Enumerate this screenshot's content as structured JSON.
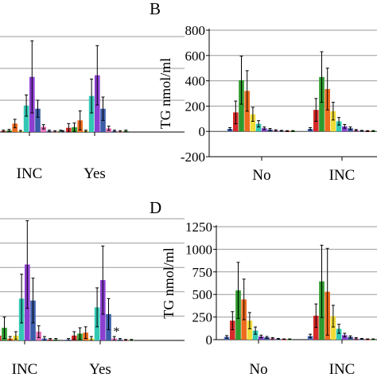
{
  "colors": {
    "blue": "#4a6fc7",
    "red": "#d62a2a",
    "green": "#2e9a2e",
    "orange": "#ee6a1f",
    "yellow": "#f2dc38",
    "teal": "#33c8b4",
    "purple": "#8b3fd0",
    "navy": "#3b5ca8",
    "pink": "#e86fb8",
    "grid": "#9a9a9a"
  },
  "chart_data": [
    {
      "panel": "A",
      "type": "bar",
      "letter": "",
      "ylabel": "",
      "ylim": [
        0,
        900
      ],
      "yticks": [],
      "grid_values": [
        300,
        600,
        900
      ],
      "categories": [
        "INC",
        "Yes"
      ],
      "grid": true,
      "series_colors": [
        "blue",
        "red",
        "green",
        "orange",
        "yellow",
        "teal",
        "purple",
        "navy",
        "pink",
        "blue",
        "red",
        "green"
      ],
      "groups": [
        {
          "values": [
            5,
            10,
            15,
            80,
            8,
            250,
            520,
            220,
            50,
            10,
            5,
            10
          ],
          "errors": [
            8,
            8,
            10,
            40,
            8,
            100,
            340,
            80,
            20,
            8,
            8,
            8
          ],
          "star": false
        },
        {
          "values": [
            5,
            40,
            45,
            110,
            10,
            340,
            535,
            220,
            35,
            10,
            5,
            10
          ],
          "errors": [
            8,
            40,
            40,
            90,
            8,
            160,
            280,
            110,
            20,
            8,
            8,
            8
          ],
          "star": false
        }
      ]
    },
    {
      "panel": "B",
      "type": "bar",
      "letter": "B",
      "ylabel": "TG nmol/ml",
      "ylim": [
        -200,
        800
      ],
      "yticks": [
        "-200",
        "0",
        "200",
        "400",
        "600",
        "800"
      ],
      "grid_values": [
        -200,
        0,
        200,
        400,
        600,
        800
      ],
      "categories": [
        "No",
        "INC"
      ],
      "grid": true,
      "series_colors": [
        "blue",
        "red",
        "green",
        "orange",
        "yellow",
        "teal",
        "purple",
        "navy",
        "pink",
        "blue",
        "red",
        "green"
      ],
      "groups": [
        {
          "values": [
            20,
            150,
            405,
            320,
            135,
            60,
            25,
            15,
            8,
            5,
            3,
            3
          ],
          "errors": [
            10,
            90,
            190,
            160,
            55,
            25,
            10,
            8,
            5,
            3,
            3,
            3
          ],
          "star": false
        },
        {
          "values": [
            20,
            170,
            430,
            335,
            160,
            80,
            40,
            25,
            10,
            5,
            3,
            3
          ],
          "errors": [
            10,
            90,
            200,
            165,
            70,
            30,
            15,
            10,
            5,
            3,
            3,
            3
          ],
          "star": false
        }
      ]
    },
    {
      "panel": "C",
      "type": "bar",
      "letter": "",
      "ylabel": "",
      "ylim": [
        0,
        1250
      ],
      "yticks": [],
      "grid_values": [
        250,
        500,
        750,
        1000,
        1250
      ],
      "categories": [
        "INC",
        "Yes"
      ],
      "grid": true,
      "series_colors": [
        "blue",
        "red",
        "green",
        "orange",
        "yellow",
        "teal",
        "purple",
        "navy",
        "pink",
        "blue",
        "red",
        "green"
      ],
      "groups": [
        {
          "values": [
            20,
            50,
            130,
            20,
            50,
            430,
            780,
            410,
            90,
            20,
            10,
            10
          ],
          "errors": [
            20,
            50,
            110,
            20,
            40,
            250,
            450,
            230,
            60,
            20,
            10,
            10
          ],
          "star": false
        },
        {
          "values": [
            10,
            50,
            70,
            80,
            20,
            340,
            620,
            270,
            20,
            10,
            5,
            5
          ],
          "errors": [
            10,
            40,
            60,
            60,
            20,
            200,
            350,
            160,
            20,
            10,
            5,
            5
          ],
          "star": true
        }
      ]
    },
    {
      "panel": "D",
      "type": "bar",
      "letter": "D",
      "ylabel": "TG nmol/ml",
      "ylim": [
        0,
        1250
      ],
      "yticks": [
        "0",
        "250",
        "500",
        "750",
        "1000",
        "1250"
      ],
      "grid_values": [
        0,
        250,
        500,
        750,
        1000,
        1250
      ],
      "categories": [
        "No",
        "INC"
      ],
      "grid": true,
      "series_colors": [
        "blue",
        "red",
        "green",
        "orange",
        "yellow",
        "teal",
        "purple",
        "navy",
        "pink",
        "blue",
        "red",
        "green"
      ],
      "groups": [
        {
          "values": [
            30,
            210,
            545,
            445,
            210,
            100,
            35,
            25,
            15,
            8,
            5,
            5
          ],
          "errors": [
            15,
            100,
            310,
            225,
            90,
            40,
            15,
            10,
            8,
            5,
            3,
            3
          ],
          "star": false
        },
        {
          "values": [
            40,
            265,
            645,
            530,
            260,
            120,
            50,
            30,
            15,
            8,
            5,
            5
          ],
          "errors": [
            20,
            130,
            400,
            480,
            120,
            50,
            20,
            12,
            8,
            5,
            3,
            3
          ],
          "star": false
        }
      ]
    }
  ]
}
